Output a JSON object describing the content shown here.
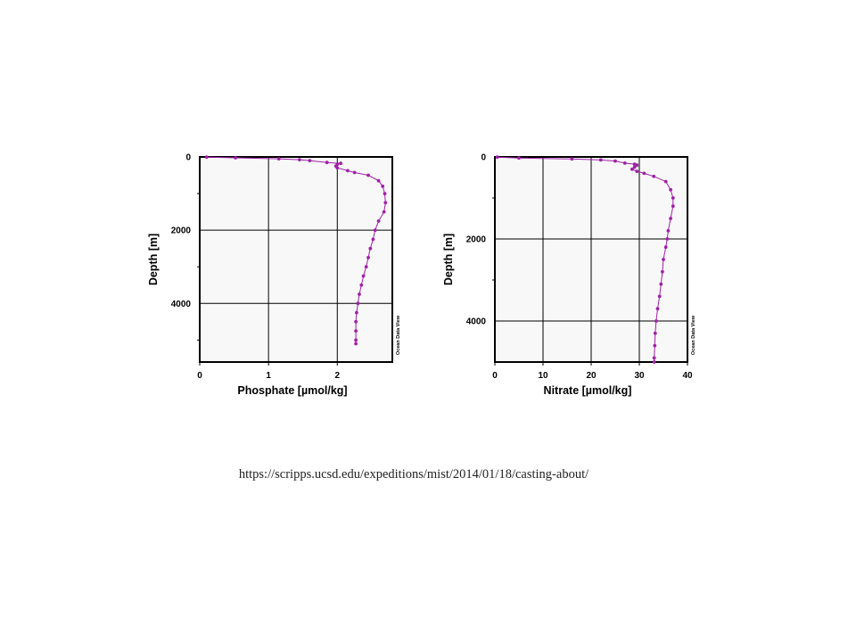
{
  "chart_data": [
    {
      "type": "scatter",
      "xlabel": "Phosphate [µmol/kg]",
      "ylabel": "Depth [m]",
      "xlim": [
        0,
        2.8
      ],
      "ylim": [
        5600,
        0
      ],
      "x_ticks": [
        "0",
        "1",
        "2"
      ],
      "y_ticks": [
        "0",
        "2000",
        "4000"
      ],
      "grid": true,
      "watermark": "Ocean Data View",
      "marker_color": "#a020a8",
      "series": [
        {
          "points": [
            [
              0.1,
              5
            ],
            [
              0.52,
              25
            ],
            [
              1.15,
              50
            ],
            [
              1.45,
              75
            ],
            [
              1.6,
              100
            ],
            [
              1.85,
              150
            ],
            [
              2.05,
              175
            ],
            [
              2.0,
              200
            ],
            [
              1.98,
              250
            ],
            [
              2.0,
              300
            ],
            [
              2.15,
              375
            ],
            [
              2.25,
              425
            ],
            [
              2.45,
              500
            ],
            [
              2.6,
              650
            ],
            [
              2.66,
              800
            ],
            [
              2.69,
              1000
            ],
            [
              2.7,
              1250
            ],
            [
              2.68,
              1500
            ],
            [
              2.6,
              1750
            ],
            [
              2.55,
              2000
            ],
            [
              2.52,
              2250
            ],
            [
              2.48,
              2500
            ],
            [
              2.45,
              2750
            ],
            [
              2.42,
              3000
            ],
            [
              2.38,
              3250
            ],
            [
              2.35,
              3500
            ],
            [
              2.32,
              3750
            ],
            [
              2.3,
              4000
            ],
            [
              2.28,
              4250
            ],
            [
              2.27,
              4500
            ],
            [
              2.27,
              4750
            ],
            [
              2.27,
              5000
            ],
            [
              2.27,
              5100
            ]
          ]
        }
      ]
    },
    {
      "type": "scatter",
      "xlabel": "Nitrate [µmol/kg]",
      "ylabel": "Depth [m]",
      "xlim": [
        0,
        40
      ],
      "ylim": [
        5000,
        0
      ],
      "x_ticks": [
        "0",
        "10",
        "20",
        "30",
        "40"
      ],
      "y_ticks": [
        "0",
        "2000",
        "4000"
      ],
      "grid": true,
      "watermark": "Ocean Data View",
      "marker_color": "#a020a8",
      "series": [
        {
          "points": [
            [
              0.5,
              5
            ],
            [
              5,
              25
            ],
            [
              16,
              50
            ],
            [
              22,
              75
            ],
            [
              25,
              100
            ],
            [
              27,
              150
            ],
            [
              29,
              175
            ],
            [
              29.5,
              200
            ],
            [
              29,
              250
            ],
            [
              28.5,
              300
            ],
            [
              29.5,
              350
            ],
            [
              31,
              400
            ],
            [
              33,
              475
            ],
            [
              35.5,
              600
            ],
            [
              36.5,
              800
            ],
            [
              37,
              1000
            ],
            [
              37,
              1200
            ],
            [
              36.5,
              1500
            ],
            [
              36,
              1800
            ],
            [
              35.8,
              2000
            ],
            [
              35.5,
              2200
            ],
            [
              35,
              2500
            ],
            [
              34.8,
              2800
            ],
            [
              34.5,
              3100
            ],
            [
              34.2,
              3400
            ],
            [
              33.8,
              3700
            ],
            [
              33.5,
              4000
            ],
            [
              33.3,
              4300
            ],
            [
              33.2,
              4600
            ],
            [
              33.1,
              4900
            ],
            [
              33.1,
              5000
            ]
          ]
        }
      ]
    }
  ],
  "footer": {
    "source_url": "https://scripps.ucsd.edu/expeditions/mist/2014/01/18/casting-about/"
  }
}
